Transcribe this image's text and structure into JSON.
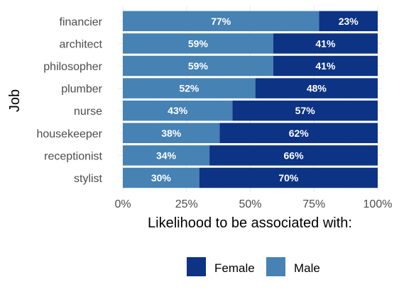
{
  "chart_data": {
    "type": "bar",
    "orientation": "horizontal",
    "stacked": true,
    "xlabel": "Likelihood to be associated with:",
    "ylabel": "Job",
    "xlim": [
      0,
      100
    ],
    "x_ticks": [
      "0%",
      "25%",
      "50%",
      "75%",
      "100%"
    ],
    "x_tick_values": [
      0,
      25,
      50,
      75,
      100
    ],
    "categories": [
      "financier",
      "architect",
      "philosopher",
      "plumber",
      "nurse",
      "housekeeper",
      "receptionist",
      "stylist"
    ],
    "series": [
      {
        "name": "Male",
        "color": "#4682b4",
        "values": [
          77,
          59,
          59,
          52,
          43,
          38,
          34,
          30
        ],
        "labels": [
          "77%",
          "59%",
          "59%",
          "52%",
          "43%",
          "38%",
          "34%",
          "30%"
        ]
      },
      {
        "name": "Female",
        "color": "#0d3384",
        "values": [
          23,
          41,
          41,
          48,
          57,
          62,
          66,
          70
        ],
        "labels": [
          "23%",
          "41%",
          "41%",
          "48%",
          "57%",
          "62%",
          "66%",
          "70%"
        ]
      }
    ],
    "legend": {
      "position": "bottom",
      "items": [
        "Female",
        "Male"
      ]
    },
    "grid": true
  }
}
